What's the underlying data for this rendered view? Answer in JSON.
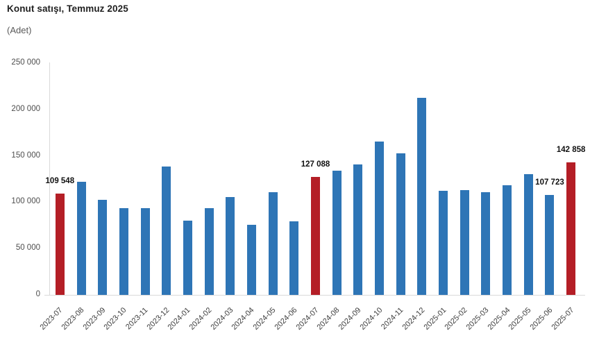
{
  "header": {
    "title": "Konut satışı, Temmuz 2025",
    "subtitle": "(Adet)"
  },
  "colors": {
    "bar": "#2e75b6",
    "bar_highlight": "#b41e26",
    "axis_line": "#d9d9d9",
    "ytick_text": "#4d4d4d",
    "xtick_text": "#404040",
    "data_label_text": "#111111",
    "title_text": "#1f1f1f",
    "subtitle_text": "#595959"
  },
  "chart_data": {
    "type": "bar",
    "title": "Konut satışı, Temmuz 2025",
    "ylabel": "(Adet)",
    "xlabel": "",
    "categories": [
      "2023-07",
      "2023-08",
      "2023-09",
      "2023-10",
      "2023-11",
      "2023-12",
      "2024-01",
      "2024-02",
      "2024-03",
      "2024-04",
      "2024-05",
      "2024-06",
      "2024-07",
      "2024-08",
      "2024-09",
      "2024-10",
      "2024-11",
      "2024-12",
      "2025-01",
      "2025-02",
      "2025-03",
      "2025-04",
      "2025-05",
      "2025-06",
      "2025-07"
    ],
    "values": [
      109548,
      122091,
      102656,
      93761,
      93514,
      138577,
      80308,
      93902,
      105476,
      75569,
      110588,
      79313,
      127088,
      134155,
      140919,
      165138,
      153014,
      212637,
      112173,
      112818,
      110795,
      118359,
      130025,
      107723,
      142858
    ],
    "highlighted_categories": [
      "2023-07",
      "2024-07",
      "2025-07"
    ],
    "data_labels": [
      {
        "category": "2023-07",
        "text": "109 548"
      },
      {
        "category": "2024-07",
        "text": "127 088"
      },
      {
        "category": "2025-06",
        "text": "107 723"
      },
      {
        "category": "2025-07",
        "text": "142 858"
      }
    ],
    "ylim": [
      0,
      250000
    ],
    "yticks": {
      "values": [
        0,
        50000,
        100000,
        150000,
        200000,
        250000
      ],
      "labels": [
        "0",
        "50 000",
        "100 000",
        "150 000",
        "200 000",
        "250 000"
      ]
    },
    "grid": "off",
    "legend": "none"
  }
}
